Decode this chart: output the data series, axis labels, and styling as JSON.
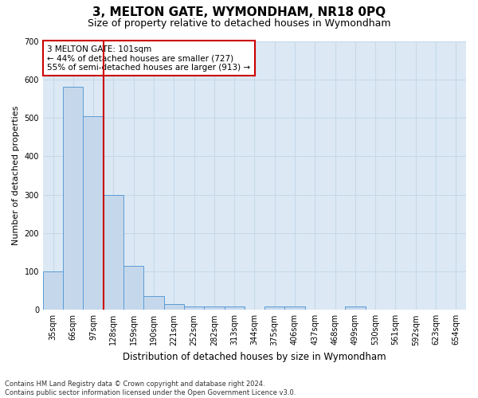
{
  "title": "3, MELTON GATE, WYMONDHAM, NR18 0PQ",
  "subtitle": "Size of property relative to detached houses in Wymondham",
  "xlabel": "Distribution of detached houses by size in Wymondham",
  "ylabel": "Number of detached properties",
  "bins": [
    "35sqm",
    "66sqm",
    "97sqm",
    "128sqm",
    "159sqm",
    "190sqm",
    "221sqm",
    "252sqm",
    "282sqm",
    "313sqm",
    "344sqm",
    "375sqm",
    "406sqm",
    "437sqm",
    "468sqm",
    "499sqm",
    "530sqm",
    "561sqm",
    "592sqm",
    "623sqm",
    "654sqm"
  ],
  "values": [
    100,
    580,
    505,
    300,
    115,
    35,
    15,
    8,
    8,
    8,
    0,
    8,
    8,
    0,
    0,
    8,
    0,
    0,
    0,
    0,
    0
  ],
  "bar_color": "#c5d8eb",
  "bar_edge_color": "#5b9bd5",
  "vline_color": "#cc0000",
  "vline_x": 2.5,
  "annotation_text": "3 MELTON GATE: 101sqm\n← 44% of detached houses are smaller (727)\n55% of semi-detached houses are larger (913) →",
  "annotation_box_color": "#ffffff",
  "annotation_box_edge_color": "#cc0000",
  "ylim": [
    0,
    700
  ],
  "yticks": [
    0,
    100,
    200,
    300,
    400,
    500,
    600,
    700
  ],
  "grid_color": "#c8d8e8",
  "background_color": "#dce9f5",
  "footnote": "Contains HM Land Registry data © Crown copyright and database right 2024.\nContains public sector information licensed under the Open Government Licence v3.0.",
  "title_fontsize": 11,
  "subtitle_fontsize": 9,
  "xlabel_fontsize": 8.5,
  "ylabel_fontsize": 8,
  "tick_fontsize": 7,
  "annotation_fontsize": 7.5,
  "footnote_fontsize": 6
}
